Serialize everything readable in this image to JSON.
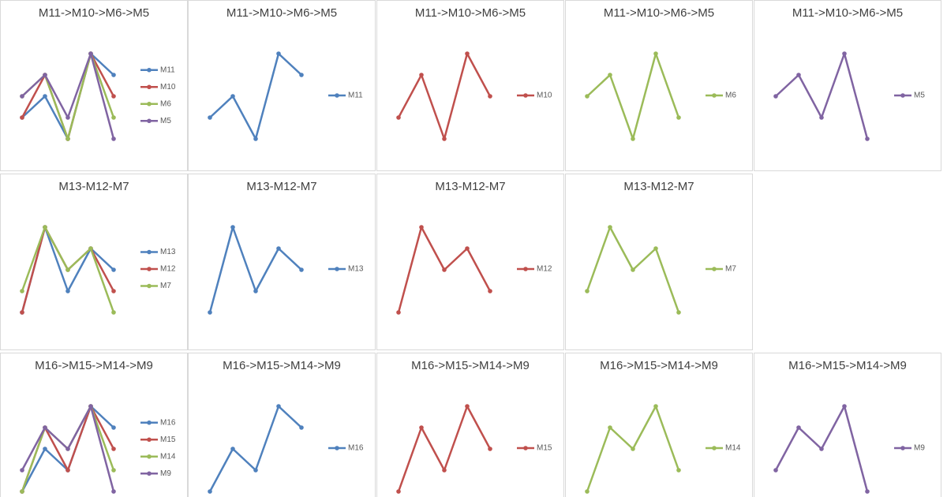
{
  "chart_data": [
    {
      "type": "line",
      "title": "M11->M10->M6->M5",
      "series": [
        {
          "name": "M11",
          "color": "#4f81bd",
          "values": [
            2,
            3,
            1,
            5,
            4
          ]
        },
        {
          "name": "M10",
          "color": "#c0504d",
          "values": [
            2,
            4,
            1,
            5,
            3
          ]
        },
        {
          "name": "M6",
          "color": "#9bbb59",
          "values": [
            3,
            4,
            1,
            5,
            2
          ]
        },
        {
          "name": "M5",
          "color": "#8064a2",
          "values": [
            3,
            4,
            2,
            5,
            1
          ]
        }
      ]
    },
    {
      "type": "line",
      "title": "M11->M10->M6->M5",
      "series": [
        {
          "name": "M11",
          "color": "#4f81bd",
          "values": [
            2,
            3,
            1,
            5,
            4
          ]
        }
      ]
    },
    {
      "type": "line",
      "title": "M11->M10->M6->M5",
      "series": [
        {
          "name": "M10",
          "color": "#c0504d",
          "values": [
            2,
            4,
            1,
            5,
            3
          ]
        }
      ]
    },
    {
      "type": "line",
      "title": "M11->M10->M6->M5",
      "series": [
        {
          "name": "M6",
          "color": "#9bbb59",
          "values": [
            3,
            4,
            1,
            5,
            2
          ]
        }
      ]
    },
    {
      "type": "line",
      "title": "M11->M10->M6->M5",
      "series": [
        {
          "name": "M5",
          "color": "#8064a2",
          "values": [
            3,
            4,
            2,
            5,
            1
          ]
        }
      ]
    },
    {
      "type": "line",
      "title": "M13-M12-M7",
      "series": [
        {
          "name": "M13",
          "color": "#4f81bd",
          "values": [
            1,
            5,
            2,
            4,
            3
          ]
        },
        {
          "name": "M12",
          "color": "#c0504d",
          "values": [
            1,
            5,
            3,
            4,
            2
          ]
        },
        {
          "name": "M7",
          "color": "#9bbb59",
          "values": [
            2,
            5,
            3,
            4,
            1
          ]
        }
      ]
    },
    {
      "type": "line",
      "title": "M13-M12-M7",
      "series": [
        {
          "name": "M13",
          "color": "#4f81bd",
          "values": [
            1,
            5,
            2,
            4,
            3
          ]
        }
      ]
    },
    {
      "type": "line",
      "title": "M13-M12-M7",
      "series": [
        {
          "name": "M12",
          "color": "#c0504d",
          "values": [
            1,
            5,
            3,
            4,
            2
          ]
        }
      ]
    },
    {
      "type": "line",
      "title": "M13-M12-M7",
      "series": [
        {
          "name": "M7",
          "color": "#9bbb59",
          "values": [
            2,
            5,
            3,
            4,
            1
          ]
        }
      ]
    },
    {
      "type": "line",
      "title": "M16->M15->M14->M9",
      "series": [
        {
          "name": "M16",
          "color": "#4f81bd",
          "values": [
            1,
            3,
            2,
            5,
            4
          ]
        },
        {
          "name": "M15",
          "color": "#c0504d",
          "values": [
            1,
            4,
            2,
            5,
            3
          ]
        },
        {
          "name": "M14",
          "color": "#9bbb59",
          "values": [
            1,
            4,
            3,
            5,
            2
          ]
        },
        {
          "name": "M9",
          "color": "#8064a2",
          "values": [
            2,
            4,
            3,
            5,
            1
          ]
        }
      ]
    },
    {
      "type": "line",
      "title": "M16->M15->M14->M9",
      "series": [
        {
          "name": "M16",
          "color": "#4f81bd",
          "values": [
            1,
            3,
            2,
            5,
            4
          ]
        }
      ]
    },
    {
      "type": "line",
      "title": "M16->M15->M14->M9",
      "series": [
        {
          "name": "M15",
          "color": "#c0504d",
          "values": [
            1,
            4,
            2,
            5,
            3
          ]
        }
      ]
    },
    {
      "type": "line",
      "title": "M16->M15->M14->M9",
      "series": [
        {
          "name": "M14",
          "color": "#9bbb59",
          "values": [
            1,
            4,
            3,
            5,
            2
          ]
        }
      ]
    },
    {
      "type": "line",
      "title": "M16->M15->M14->M9",
      "series": [
        {
          "name": "M9",
          "color": "#8064a2",
          "values": [
            2,
            4,
            3,
            5,
            1
          ]
        }
      ]
    }
  ]
}
